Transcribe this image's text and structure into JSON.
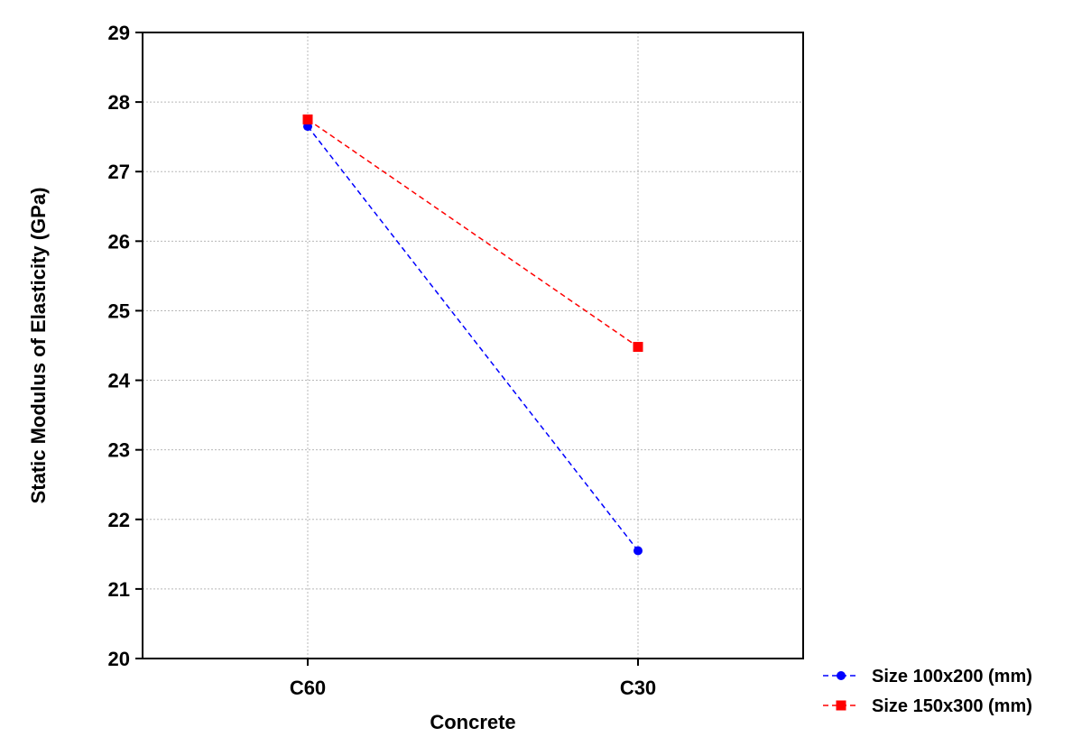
{
  "chart_data": {
    "type": "line",
    "categories": [
      "C60",
      "C30"
    ],
    "series": [
      {
        "name": "Size 100x200 (mm)",
        "values": [
          27.65,
          21.55
        ],
        "color": "#0000ff",
        "marker": "circle"
      },
      {
        "name": "Size 150x300 (mm)",
        "values": [
          27.75,
          24.48
        ],
        "color": "#ff0000",
        "marker": "square"
      }
    ],
    "xlabel": "Concrete",
    "ylabel": "Static Modulus of Elasticity (GPa)",
    "ylim": [
      20,
      29
    ],
    "yticks": [
      20,
      21,
      22,
      23,
      24,
      25,
      26,
      27,
      28,
      29
    ],
    "grid": true,
    "line_style": "dashed",
    "legend_position": "bottom-right"
  }
}
